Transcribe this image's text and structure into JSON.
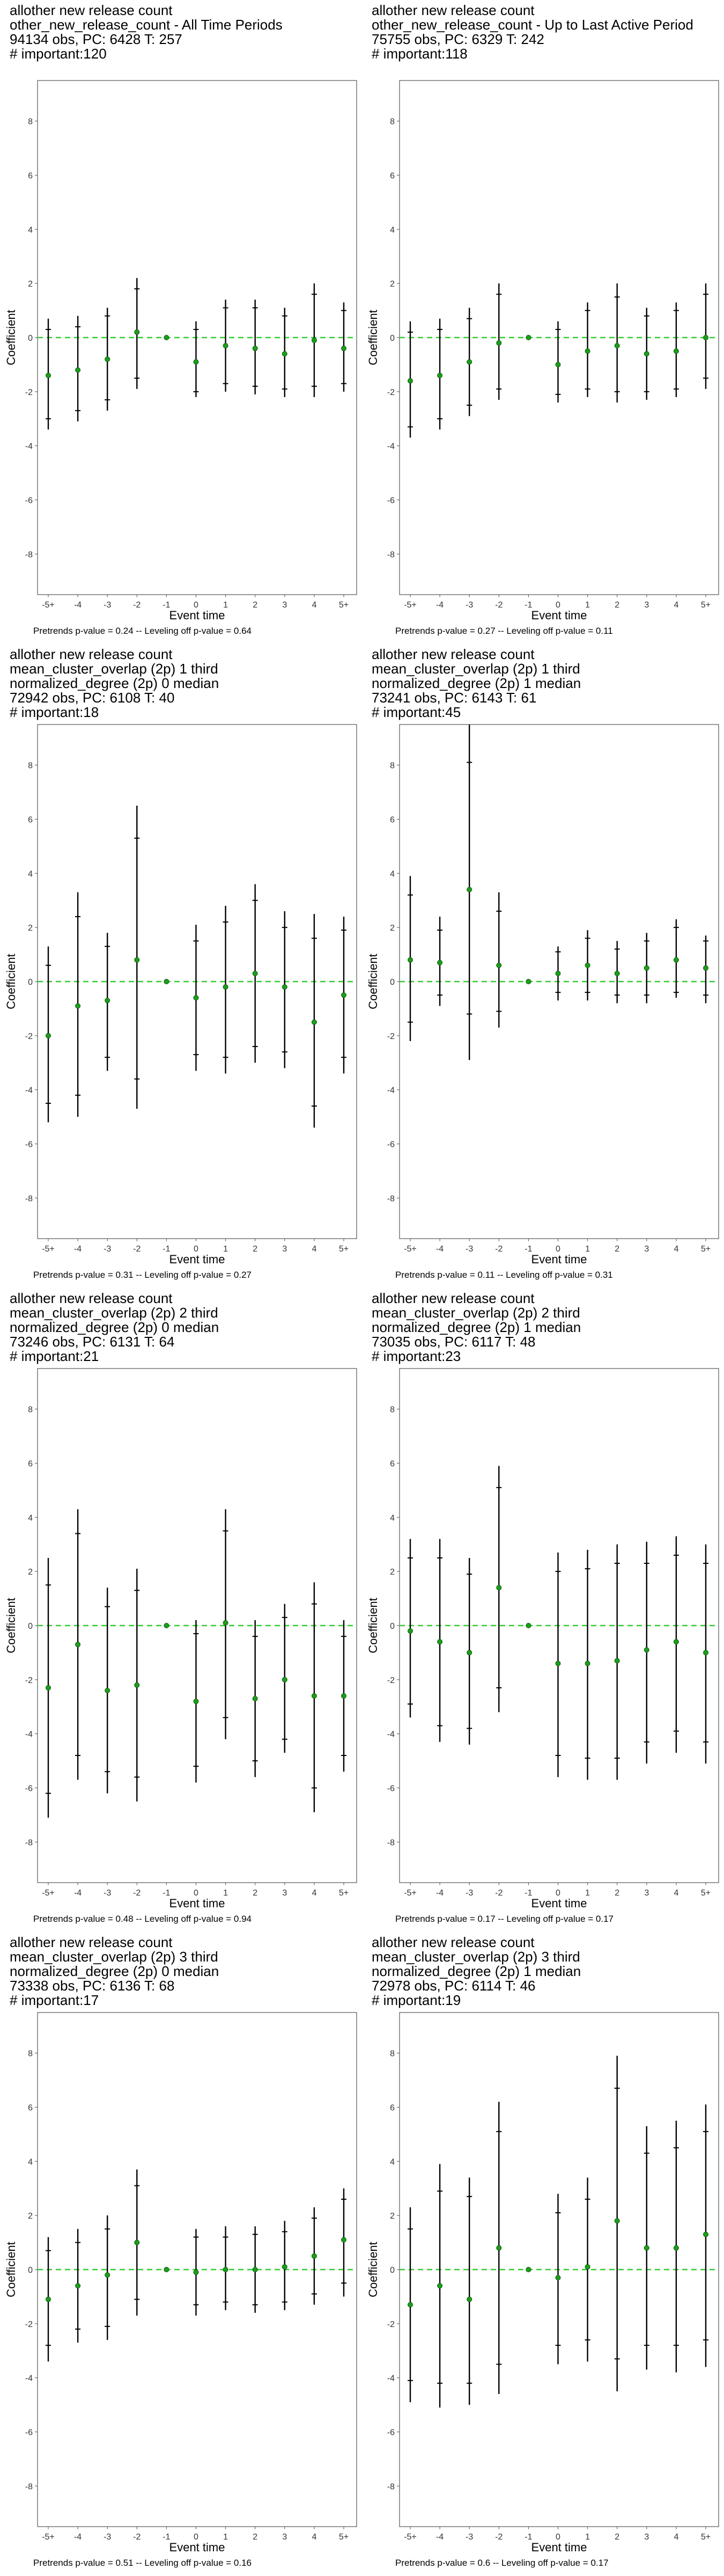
{
  "chart_data": [
    {
      "type": "scatter",
      "title_lines": [
        "allother new release count",
        "other_new_release_count - All Time Periods",
        "94134 obs, PC: 6428 T: 257",
        "# important:120"
      ],
      "xlabel": "Event time",
      "ylabel": "Coefficient",
      "categories": [
        "-5+",
        "-4",
        "-3",
        "-2",
        "-1",
        "0",
        "1",
        "2",
        "3",
        "4",
        "5+"
      ],
      "yticks": [
        -8,
        -6,
        -4,
        -2,
        0,
        2,
        4,
        6,
        8
      ],
      "ylim": [
        -9.5,
        9.5
      ],
      "reference_line": 0,
      "caption": "Pretrends p-value = 0.24 -- Leveling off p-value = 0.64",
      "series": [
        {
          "estimate": [
            -1.4,
            -1.2,
            -0.8,
            0.2,
            0.0,
            -0.9,
            -0.3,
            -0.4,
            -0.6,
            -0.1,
            -0.4
          ],
          "ci90_low": [
            -3.0,
            -2.7,
            -2.3,
            -1.5,
            0.0,
            -2.0,
            -1.7,
            -1.8,
            -1.9,
            -1.8,
            -1.7
          ],
          "ci90_high": [
            0.3,
            0.4,
            0.8,
            1.8,
            0.0,
            0.3,
            1.1,
            1.1,
            0.8,
            1.6,
            1.0
          ],
          "ci95_low": [
            -3.4,
            -3.1,
            -2.7,
            -1.9,
            0.0,
            -2.2,
            -2.0,
            -2.1,
            -2.2,
            -2.2,
            -2.0
          ],
          "ci95_high": [
            0.7,
            0.8,
            1.1,
            2.2,
            0.0,
            0.6,
            1.4,
            1.4,
            1.1,
            2.0,
            1.3
          ]
        }
      ]
    },
    {
      "type": "scatter",
      "title_lines": [
        "allother new release count",
        "other_new_release_count - Up to Last Active Period",
        "75755 obs, PC: 6329 T: 242",
        "# important:118"
      ],
      "xlabel": "Event time",
      "ylabel": "Coefficient",
      "categories": [
        "-5+",
        "-4",
        "-3",
        "-2",
        "-1",
        "0",
        "1",
        "2",
        "3",
        "4",
        "5+"
      ],
      "yticks": [
        -8,
        -6,
        -4,
        -2,
        0,
        2,
        4,
        6,
        8
      ],
      "ylim": [
        -9.5,
        9.5
      ],
      "reference_line": 0,
      "caption": "Pretrends p-value = 0.27 -- Leveling off p-value = 0.11",
      "series": [
        {
          "estimate": [
            -1.6,
            -1.4,
            -0.9,
            -0.2,
            0.0,
            -1.0,
            -0.5,
            -0.3,
            -0.6,
            -0.5,
            0.0
          ],
          "ci90_low": [
            -3.3,
            -3.0,
            -2.5,
            -1.9,
            0.0,
            -2.1,
            -1.9,
            -2.0,
            -2.0,
            -1.9,
            -1.5
          ],
          "ci90_high": [
            0.2,
            0.3,
            0.7,
            1.6,
            0.0,
            0.3,
            1.0,
            1.5,
            0.8,
            1.0,
            1.6
          ],
          "ci95_low": [
            -3.7,
            -3.4,
            -2.9,
            -2.3,
            0.0,
            -2.4,
            -2.2,
            -2.4,
            -2.3,
            -2.2,
            -1.9
          ],
          "ci95_high": [
            0.6,
            0.7,
            1.1,
            2.0,
            0.0,
            0.6,
            1.3,
            2.0,
            1.1,
            1.3,
            2.0
          ]
        }
      ]
    },
    {
      "type": "scatter",
      "title_lines": [
        "allother new release count",
        "mean_cluster_overlap (2p) 1 third",
        "normalized_degree (2p) 0 median",
        "72942 obs, PC: 6108 T: 40",
        "# important:18"
      ],
      "xlabel": "Event time",
      "ylabel": "Coefficient",
      "categories": [
        "-5+",
        "-4",
        "-3",
        "-2",
        "-1",
        "0",
        "1",
        "2",
        "3",
        "4",
        "5+"
      ],
      "yticks": [
        -8,
        -6,
        -4,
        -2,
        0,
        2,
        4,
        6,
        8
      ],
      "ylim": [
        -9.5,
        9.5
      ],
      "reference_line": 0,
      "caption": "Pretrends p-value = 0.31 -- Leveling off p-value = 0.27",
      "series": [
        {
          "estimate": [
            -2.0,
            -0.9,
            -0.7,
            0.8,
            0.0,
            -0.6,
            -0.2,
            0.3,
            -0.2,
            -1.5,
            -0.5
          ],
          "ci90_low": [
            -4.5,
            -4.2,
            -2.8,
            -3.6,
            0.0,
            -2.7,
            -2.8,
            -2.4,
            -2.6,
            -4.6,
            -2.8
          ],
          "ci90_high": [
            0.6,
            2.4,
            1.3,
            5.3,
            0.0,
            1.5,
            2.2,
            3.0,
            2.0,
            1.6,
            1.9
          ],
          "ci95_low": [
            -5.2,
            -5.0,
            -3.3,
            -4.7,
            0.0,
            -3.3,
            -3.4,
            -3.0,
            -3.2,
            -5.4,
            -3.4
          ],
          "ci95_high": [
            1.3,
            3.3,
            1.8,
            6.5,
            0.0,
            2.1,
            2.8,
            3.6,
            2.6,
            2.5,
            2.4
          ]
        }
      ]
    },
    {
      "type": "scatter",
      "title_lines": [
        "allother new release count",
        "mean_cluster_overlap (2p) 1 third",
        "normalized_degree (2p) 1 median",
        "73241 obs, PC: 6143 T: 61",
        "# important:45"
      ],
      "xlabel": "Event time",
      "ylabel": "Coefficient",
      "categories": [
        "-5+",
        "-4",
        "-3",
        "-2",
        "-1",
        "0",
        "1",
        "2",
        "3",
        "4",
        "5+"
      ],
      "yticks": [
        -8,
        -6,
        -4,
        -2,
        0,
        2,
        4,
        6,
        8
      ],
      "ylim": [
        -9.5,
        9.5
      ],
      "reference_line": 0,
      "caption": "Pretrends p-value = 0.11 -- Leveling off p-value = 0.31",
      "series": [
        {
          "estimate": [
            0.8,
            0.7,
            3.4,
            0.6,
            0.0,
            0.3,
            0.6,
            0.3,
            0.5,
            0.8,
            0.5
          ],
          "ci90_low": [
            -1.5,
            -0.5,
            -1.2,
            -1.1,
            0.0,
            -0.4,
            -0.4,
            -0.5,
            -0.5,
            -0.4,
            -0.5
          ],
          "ci90_high": [
            3.2,
            1.9,
            8.1,
            2.6,
            0.0,
            1.1,
            1.6,
            1.2,
            1.5,
            2.0,
            1.5
          ],
          "ci95_low": [
            -2.2,
            -0.9,
            -2.9,
            -1.7,
            0.0,
            -0.7,
            -0.7,
            -0.8,
            -0.8,
            -0.6,
            -0.8
          ],
          "ci95_high": [
            3.9,
            2.4,
            9.5,
            3.3,
            0.0,
            1.3,
            1.9,
            1.5,
            1.8,
            2.3,
            1.7
          ]
        }
      ]
    },
    {
      "type": "scatter",
      "title_lines": [
        "allother new release count",
        "mean_cluster_overlap (2p) 2 third",
        "normalized_degree (2p) 0 median",
        "73246 obs, PC: 6131 T: 64",
        "# important:21"
      ],
      "xlabel": "Event time",
      "ylabel": "Coefficient",
      "categories": [
        "-5+",
        "-4",
        "-3",
        "-2",
        "-1",
        "0",
        "1",
        "2",
        "3",
        "4",
        "5+"
      ],
      "yticks": [
        -8,
        -6,
        -4,
        -2,
        0,
        2,
        4,
        6,
        8
      ],
      "ylim": [
        -9.5,
        9.5
      ],
      "reference_line": 0,
      "caption": "Pretrends p-value = 0.48 -- Leveling off p-value = 0.94",
      "series": [
        {
          "estimate": [
            -2.3,
            -0.7,
            -2.4,
            -2.2,
            0.0,
            -2.8,
            0.1,
            -2.7,
            -2.0,
            -2.6,
            -2.6
          ],
          "ci90_low": [
            -6.2,
            -4.8,
            -5.4,
            -5.6,
            0.0,
            -5.2,
            -3.4,
            -5.0,
            -4.2,
            -6.0,
            -4.8
          ],
          "ci90_high": [
            1.5,
            3.4,
            0.7,
            1.3,
            0.0,
            -0.3,
            3.5,
            -0.4,
            0.3,
            0.8,
            -0.4
          ],
          "ci95_low": [
            -7.1,
            -5.7,
            -6.2,
            -6.5,
            0.0,
            -5.8,
            -4.2,
            -5.6,
            -4.7,
            -6.9,
            -5.4
          ],
          "ci95_high": [
            2.5,
            4.3,
            1.4,
            2.1,
            0.0,
            0.2,
            4.3,
            0.2,
            0.8,
            1.6,
            0.2
          ]
        }
      ]
    },
    {
      "type": "scatter",
      "title_lines": [
        "allother new release count",
        "mean_cluster_overlap (2p) 2 third",
        "normalized_degree (2p) 1 median",
        "73035 obs, PC: 6117 T: 48",
        "# important:23"
      ],
      "xlabel": "Event time",
      "ylabel": "Coefficient",
      "categories": [
        "-5+",
        "-4",
        "-3",
        "-2",
        "-1",
        "0",
        "1",
        "2",
        "3",
        "4",
        "5+"
      ],
      "yticks": [
        -8,
        -6,
        -4,
        -2,
        0,
        2,
        4,
        6,
        8
      ],
      "ylim": [
        -9.5,
        9.5
      ],
      "reference_line": 0,
      "caption": "Pretrends p-value = 0.17 -- Leveling off p-value = 0.17",
      "series": [
        {
          "estimate": [
            -0.2,
            -0.6,
            -1.0,
            1.4,
            0.0,
            -1.4,
            -1.4,
            -1.3,
            -0.9,
            -0.6,
            -1.0
          ],
          "ci90_low": [
            -2.9,
            -3.7,
            -3.8,
            -2.3,
            0.0,
            -4.8,
            -4.9,
            -4.9,
            -4.3,
            -3.9,
            -4.3
          ],
          "ci90_high": [
            2.5,
            2.5,
            1.9,
            5.1,
            0.0,
            2.0,
            2.1,
            2.3,
            2.3,
            2.6,
            2.3
          ],
          "ci95_low": [
            -3.4,
            -4.3,
            -4.4,
            -3.2,
            0.0,
            -5.6,
            -5.7,
            -5.7,
            -5.1,
            -4.7,
            -5.1
          ],
          "ci95_high": [
            3.2,
            3.2,
            2.5,
            5.9,
            0.0,
            2.7,
            2.8,
            3.0,
            3.1,
            3.3,
            3.0
          ]
        }
      ]
    },
    {
      "type": "scatter",
      "title_lines": [
        "allother new release count",
        "mean_cluster_overlap (2p) 3 third",
        "normalized_degree (2p) 0 median",
        "73338 obs, PC: 6136 T: 68",
        "# important:17"
      ],
      "xlabel": "Event time",
      "ylabel": "Coefficient",
      "categories": [
        "-5+",
        "-4",
        "-3",
        "-2",
        "-1",
        "0",
        "1",
        "2",
        "3",
        "4",
        "5+"
      ],
      "yticks": [
        -8,
        -6,
        -4,
        -2,
        0,
        2,
        4,
        6,
        8
      ],
      "ylim": [
        -9.5,
        9.5
      ],
      "reference_line": 0,
      "caption": "Pretrends p-value = 0.51 -- Leveling off p-value = 0.16",
      "series": [
        {
          "estimate": [
            -1.1,
            -0.6,
            -0.2,
            1.0,
            0.0,
            -0.1,
            0.0,
            0.0,
            0.1,
            0.5,
            1.1
          ],
          "ci90_low": [
            -2.8,
            -2.2,
            -2.1,
            -1.1,
            0.0,
            -1.3,
            -1.2,
            -1.3,
            -1.2,
            -0.9,
            -0.5
          ],
          "ci90_high": [
            0.7,
            1.0,
            1.5,
            3.1,
            0.0,
            1.2,
            1.2,
            1.3,
            1.4,
            1.9,
            2.6
          ],
          "ci95_low": [
            -3.4,
            -2.7,
            -2.6,
            -1.7,
            0.0,
            -1.7,
            -1.5,
            -1.6,
            -1.5,
            -1.3,
            -1.0
          ],
          "ci95_high": [
            1.2,
            1.5,
            2.0,
            3.7,
            0.0,
            1.5,
            1.6,
            1.6,
            1.8,
            2.3,
            3.0
          ]
        }
      ]
    },
    {
      "type": "scatter",
      "title_lines": [
        "allother new release count",
        "mean_cluster_overlap (2p) 3 third",
        "normalized_degree (2p) 1 median",
        "72978 obs, PC: 6114 T: 46",
        "# important:19"
      ],
      "xlabel": "Event time",
      "ylabel": "Coefficient",
      "categories": [
        "-5+",
        "-4",
        "-3",
        "-2",
        "-1",
        "0",
        "1",
        "2",
        "3",
        "4",
        "5+"
      ],
      "yticks": [
        -8,
        -6,
        -4,
        -2,
        0,
        2,
        4,
        6,
        8
      ],
      "ylim": [
        -9.5,
        9.5
      ],
      "reference_line": 0,
      "caption": "Pretrends p-value = 0.6 -- Leveling off p-value = 0.17",
      "series": [
        {
          "estimate": [
            -1.3,
            -0.6,
            -1.1,
            0.8,
            0.0,
            -0.3,
            0.1,
            1.8,
            0.8,
            0.8,
            1.3
          ],
          "ci90_low": [
            -4.1,
            -4.2,
            -4.2,
            -3.5,
            0.0,
            -2.8,
            -2.6,
            -3.3,
            -2.8,
            -2.8,
            -2.6
          ],
          "ci90_high": [
            1.5,
            2.9,
            2.7,
            5.1,
            0.0,
            2.1,
            2.6,
            6.7,
            4.3,
            4.5,
            5.1
          ],
          "ci95_low": [
            -4.9,
            -5.1,
            -5.0,
            -4.6,
            0.0,
            -3.5,
            -3.4,
            -4.5,
            -3.7,
            -3.8,
            -3.6
          ],
          "ci95_high": [
            2.3,
            3.9,
            3.4,
            6.2,
            0.0,
            2.8,
            3.4,
            7.9,
            5.3,
            5.5,
            6.1
          ]
        }
      ]
    }
  ],
  "colors": {
    "point": "#1b9e1b",
    "reference_line": "#33cc33",
    "interval": "#000000",
    "axis": "#555555",
    "tick_label": "#333333"
  }
}
